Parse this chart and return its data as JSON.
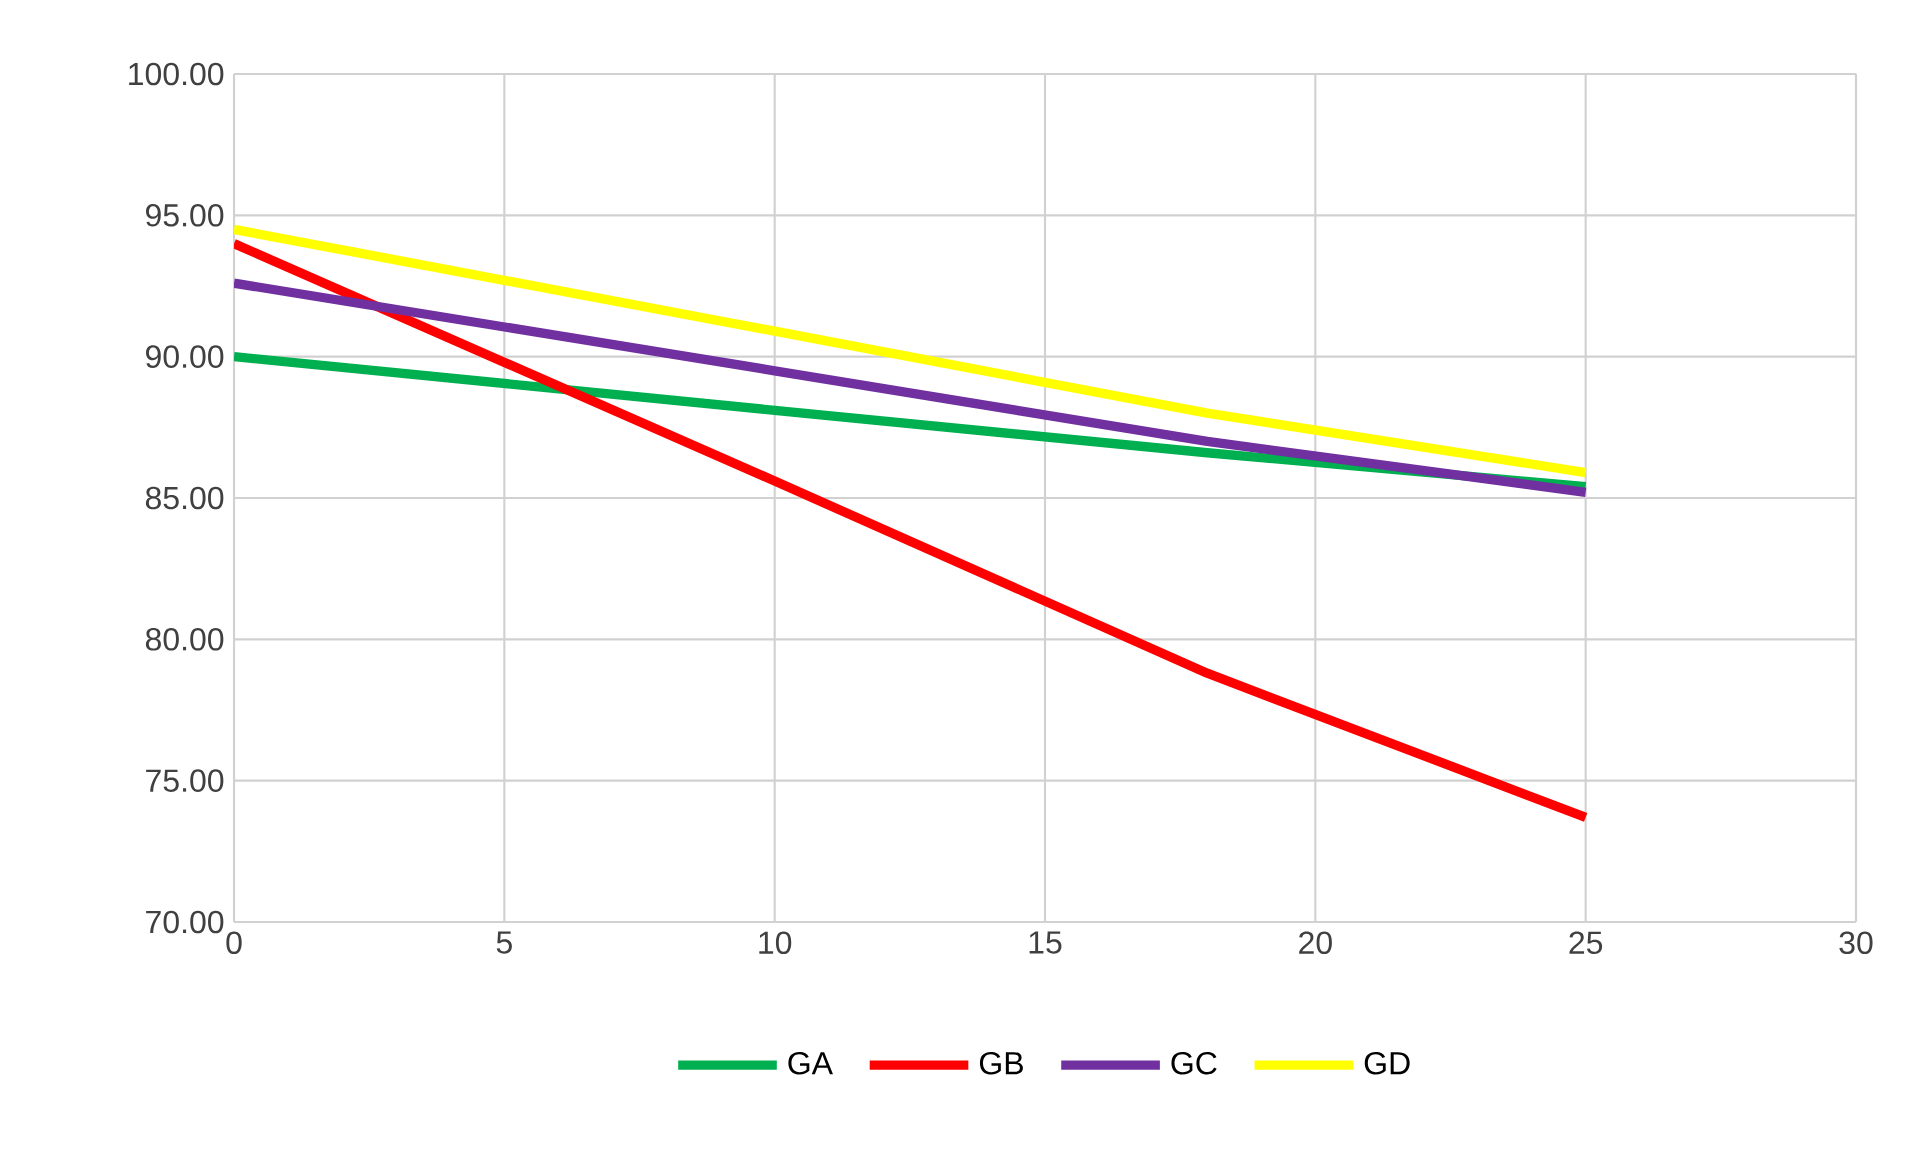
{
  "chart_data": {
    "type": "line",
    "x": [
      0,
      10,
      18,
      25
    ],
    "series": [
      {
        "name": "GA",
        "color": "#00b050",
        "values": [
          90.0,
          88.1,
          86.6,
          85.4
        ]
      },
      {
        "name": "GB",
        "color": "#ff0000",
        "values": [
          94.0,
          85.6,
          78.8,
          73.7
        ]
      },
      {
        "name": "GC",
        "color": "#7030a0",
        "values": [
          92.6,
          89.5,
          87.0,
          85.2
        ]
      },
      {
        "name": "GD",
        "color": "#ffff00",
        "values": [
          94.5,
          90.9,
          88.0,
          85.9
        ]
      }
    ],
    "xlim": [
      0,
      30
    ],
    "xticks": [
      0,
      5,
      10,
      15,
      20,
      25,
      30
    ],
    "ylim": [
      70,
      100
    ],
    "yticks": [
      {
        "value": 70,
        "label": "70.00"
      },
      {
        "value": 75,
        "label": "75.00"
      },
      {
        "value": 80,
        "label": "80.00"
      },
      {
        "value": 85,
        "label": "85.00"
      },
      {
        "value": 90,
        "label": "90.00"
      },
      {
        "value": 95,
        "label": "95.00"
      },
      {
        "value": 100,
        "label": "100.00"
      }
    ],
    "grid": true,
    "legend": "bottom",
    "marker": "none",
    "line_style": "solid"
  }
}
